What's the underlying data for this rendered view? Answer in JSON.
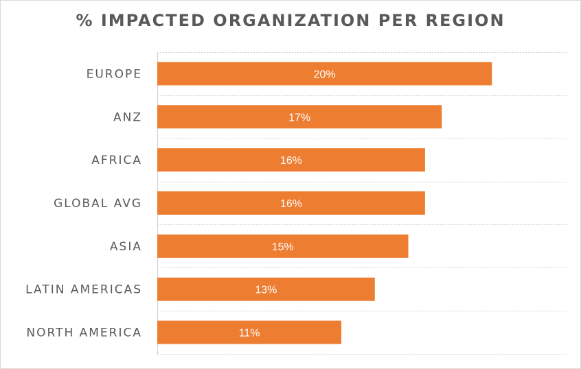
{
  "chart_data": {
    "type": "bar",
    "orientation": "horizontal",
    "title": "% IMPACTED ORGANIZATION PER REGION",
    "categories": [
      "EUROPE",
      "ANZ",
      "AFRICA",
      "GLOBAL AVG",
      "ASIA",
      "LATIN AMERICAS",
      "NORTH AMERICA"
    ],
    "values": [
      20,
      17,
      16,
      16,
      15,
      13,
      11
    ],
    "value_labels": [
      "20%",
      "17%",
      "16%",
      "16%",
      "15%",
      "13%",
      "11%"
    ],
    "xlim": [
      0,
      24.5
    ],
    "bar_color": "#ED7D31",
    "grid": true,
    "legend": "none"
  }
}
